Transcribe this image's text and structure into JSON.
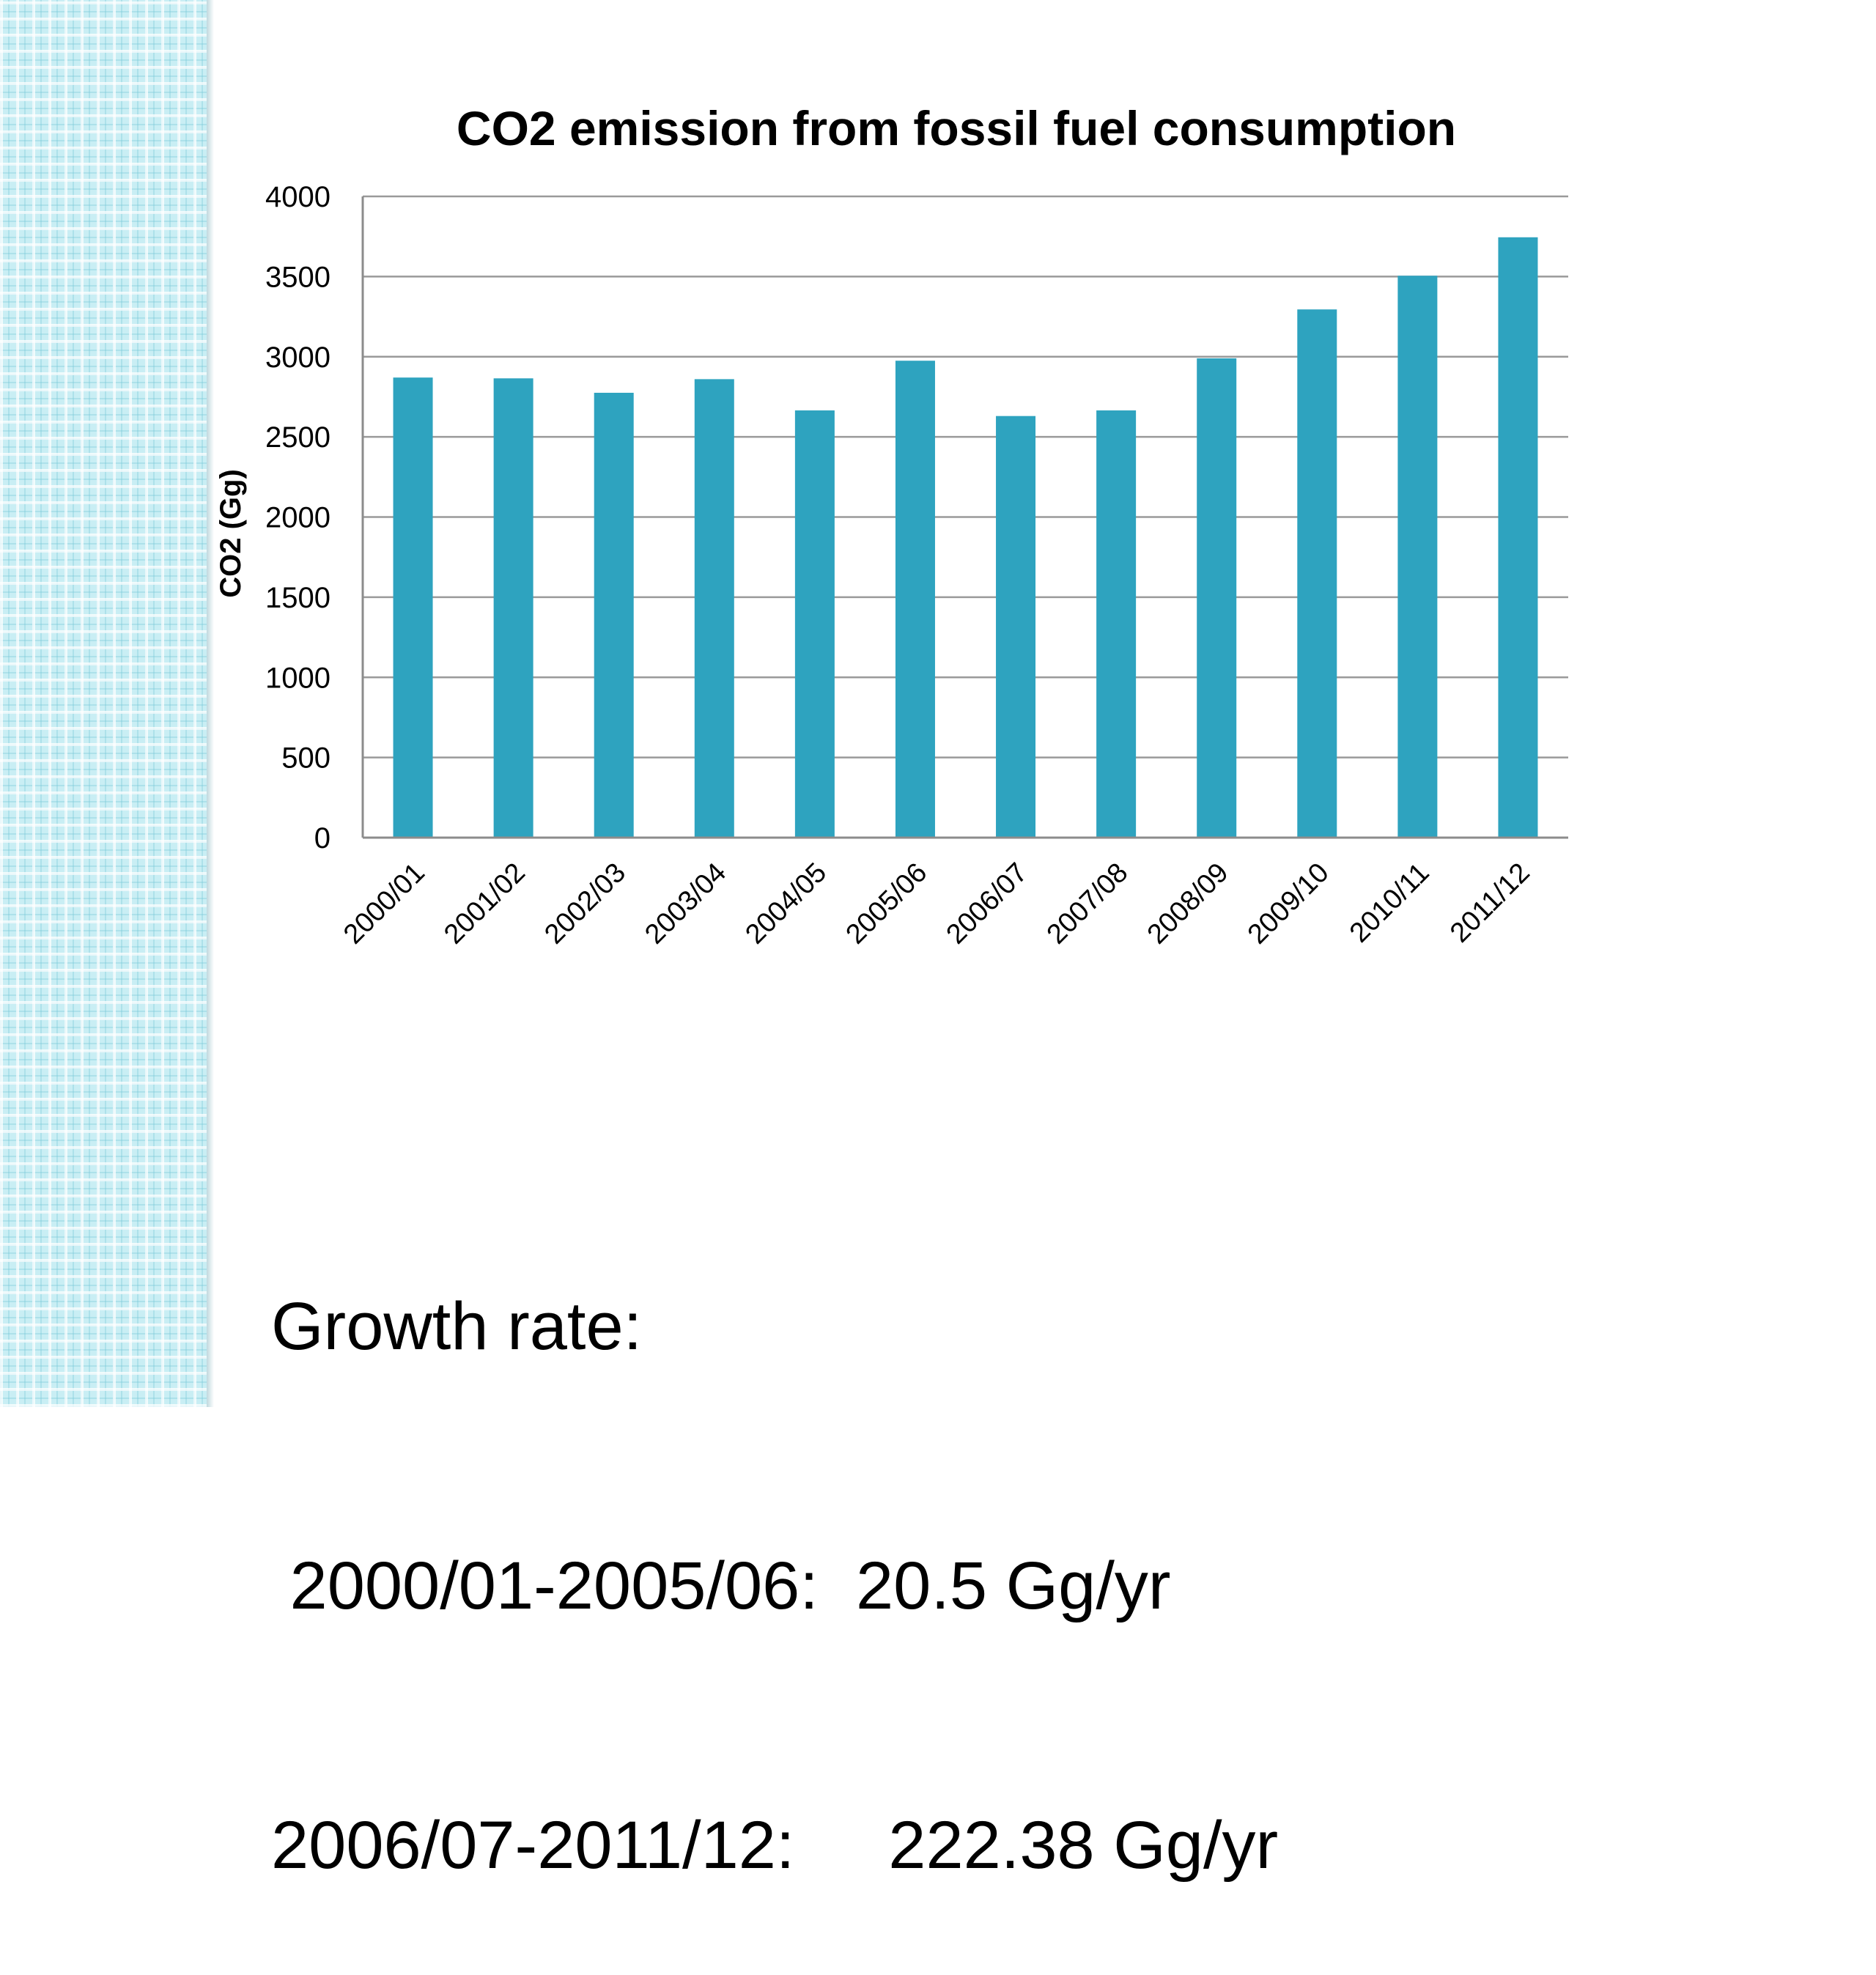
{
  "chart_data": {
    "type": "bar",
    "title": "CO2 emission from fossil fuel consumption",
    "xlabel": "",
    "ylabel": "CO2 (Gg)",
    "ylim": [
      0,
      4000
    ],
    "yticks": [
      "0",
      "500",
      "1000",
      "1500",
      "2000",
      "2500",
      "3000",
      "3500",
      "4000"
    ],
    "grid": true,
    "legend": "none",
    "bar_color": "#2ea3bf",
    "categories": [
      "2000/01",
      "2001/02",
      "2002/03",
      "2003/04",
      "2004/05",
      "2005/06",
      "2006/07",
      "2007/08",
      "2008/09",
      "2009/10",
      "2010/11",
      "2011/12"
    ],
    "values": [
      2870,
      2865,
      2775,
      2860,
      2665,
      2975,
      2630,
      2665,
      2990,
      3295,
      3505,
      3745
    ]
  },
  "notes": {
    "heading": "Growth rate:",
    "line1": " 2000/01-2005/06:  20.5 Gg/yr",
    "line2": "2006/07-2011/12:     222.38 Gg/yr"
  }
}
